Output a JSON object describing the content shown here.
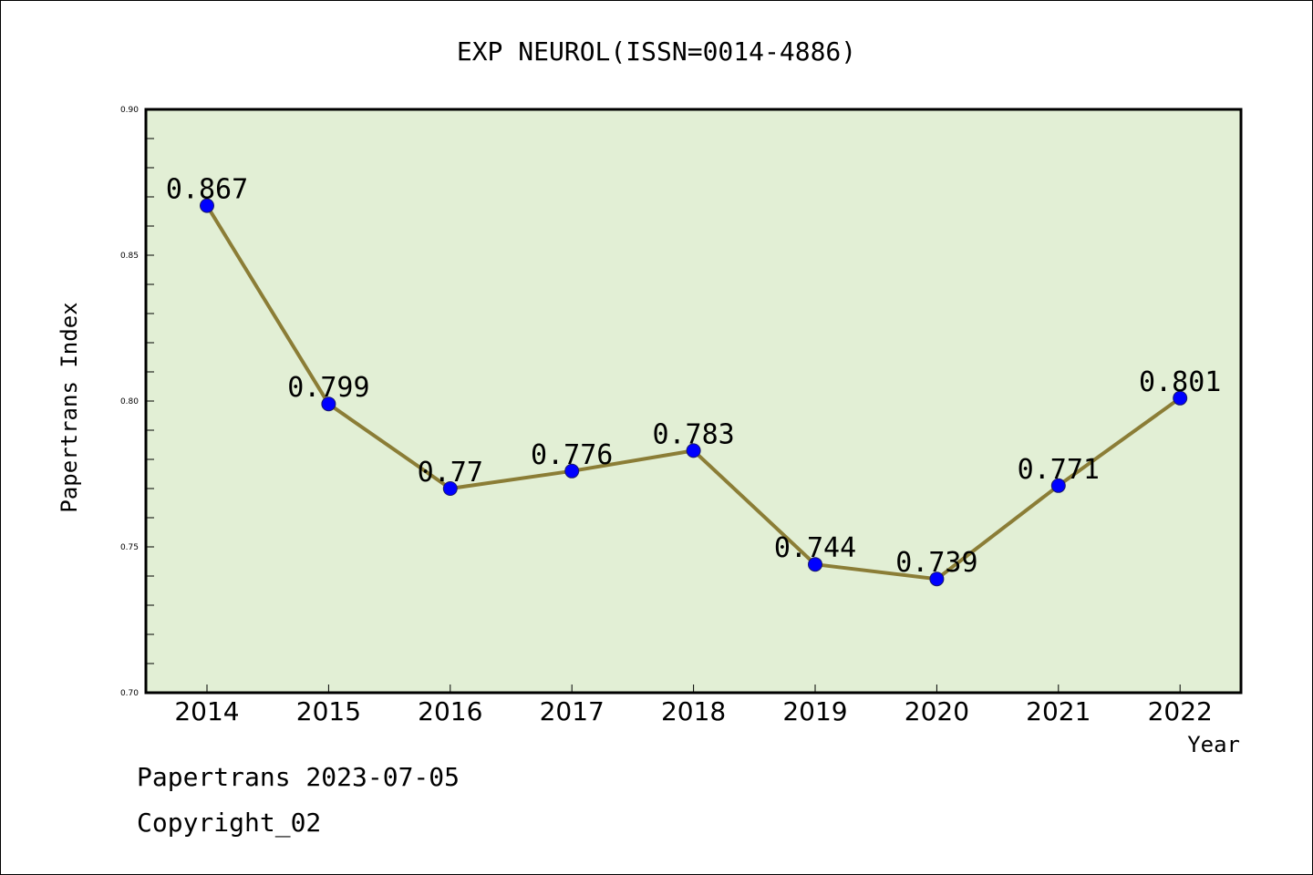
{
  "chart_data": {
    "type": "line",
    "title": "EXP NEUROL(ISSN=0014-4886)",
    "xlabel": "Year",
    "ylabel": "Papertrans Index",
    "categories": [
      "2014",
      "2015",
      "2016",
      "2017",
      "2018",
      "2019",
      "2020",
      "2021",
      "2022"
    ],
    "values": [
      0.867,
      0.799,
      0.77,
      0.776,
      0.783,
      0.744,
      0.739,
      0.771,
      0.801
    ],
    "data_labels": [
      "0.867",
      "0.799",
      "0.77",
      "0.776",
      "0.783",
      "0.744",
      "0.739",
      "0.771",
      "0.801"
    ],
    "ylim": [
      0.7,
      0.9
    ],
    "yticks": [
      0.7,
      0.75,
      0.8,
      0.85,
      0.9
    ],
    "ytick_labels": [
      "0.70",
      "0.75",
      "0.80",
      "0.85",
      "0.90"
    ],
    "grid": false,
    "colors": {
      "plot_background": "#e2efd5",
      "line": "#8b7d36",
      "marker": "#0000ff"
    }
  },
  "footer": {
    "date_line": "Papertrans 2023-07-05",
    "copyright_line": "Copyright_02"
  }
}
